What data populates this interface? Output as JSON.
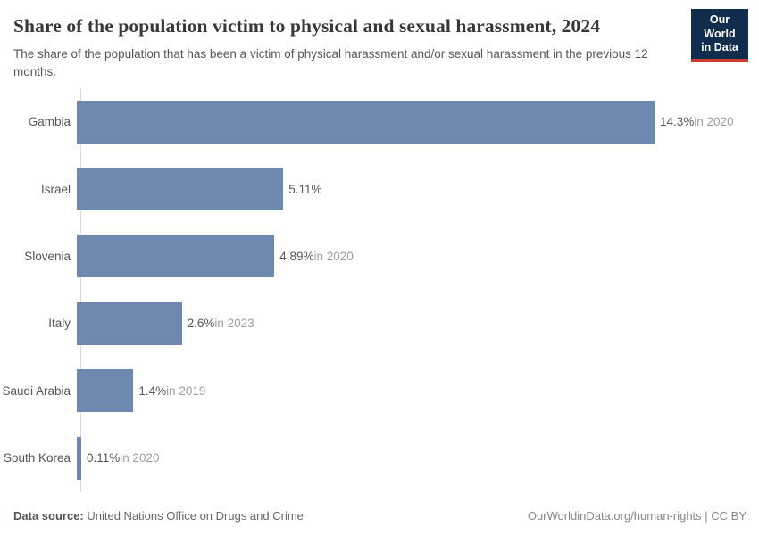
{
  "header": {
    "title": "Share of the population victim to physical and sexual harassment, 2024",
    "subtitle": "The share of the population that has been a victim of physical harassment and/or sexual harassment in the previous 12 months.",
    "logo": {
      "line1": "Our World",
      "line2": "in Data",
      "bg_color": "#102d4e",
      "accent_color": "#cc3b30"
    }
  },
  "chart_data": {
    "type": "bar",
    "orientation": "horizontal",
    "title": "Share of the population victim to physical and sexual harassment, 2024",
    "categories": [
      "Gambia",
      "Israel",
      "Slovenia",
      "Italy",
      "Saudi Arabia",
      "South Korea"
    ],
    "values": [
      14.3,
      5.11,
      4.89,
      2.6,
      1.4,
      0.11
    ],
    "value_labels": [
      "14.3%",
      "5.11%",
      "4.89%",
      "2.6%",
      "1.4%",
      "0.11%"
    ],
    "year_labels": [
      "in 2020",
      "",
      "in 2020",
      "in 2023",
      "in 2019",
      "in 2020"
    ],
    "xlim": [
      0,
      14.3
    ],
    "bar_color": "#6e89b0",
    "grid": false,
    "legend": "none"
  },
  "footer": {
    "source_label": "Data source:",
    "source_value": " United Nations Office on Drugs and Crime",
    "link": "OurWorldinData.org/human-rights | CC BY"
  }
}
